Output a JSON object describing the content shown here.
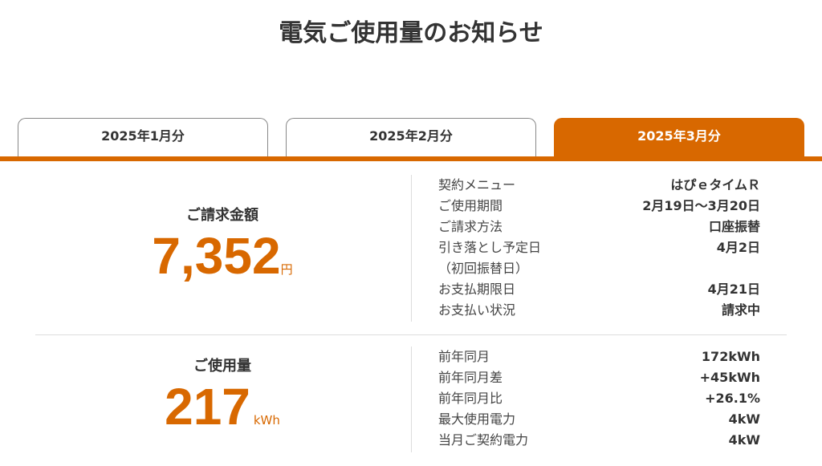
{
  "page_title": "電気ご使用量のお知らせ",
  "tabs": [
    {
      "label": "2025年1月分",
      "active": false
    },
    {
      "label": "2025年2月分",
      "active": false
    },
    {
      "label": "2025年3月分",
      "active": true
    }
  ],
  "accent_color": "#d86800",
  "billing": {
    "label": "ご請求金額",
    "amount": "7,352",
    "unit": "円",
    "details": [
      {
        "key": "契約メニュー",
        "value": "はぴｅタイムＲ"
      },
      {
        "key": "ご使用期間",
        "value": "2月19日～3月20日"
      },
      {
        "key": "ご請求方法",
        "value": "口座振替"
      },
      {
        "key": "引き落とし予定日",
        "value": "4月2日"
      },
      {
        "key": "（初回振替日）",
        "value": ""
      },
      {
        "key": "お支払期限日",
        "value": "4月21日"
      },
      {
        "key": "お支払い状況",
        "value": "請求中"
      }
    ]
  },
  "usage": {
    "label": "ご使用量",
    "amount": "217",
    "unit": "kWh",
    "details": [
      {
        "key": "前年同月",
        "value": "172kWh"
      },
      {
        "key": "前年同月差",
        "value": "+45kWh"
      },
      {
        "key": "前年同月比",
        "value": "+26.1%"
      },
      {
        "key": "最大使用電力",
        "value": "4kW"
      },
      {
        "key": "当月ご契約電力",
        "value": "4kW"
      }
    ]
  }
}
